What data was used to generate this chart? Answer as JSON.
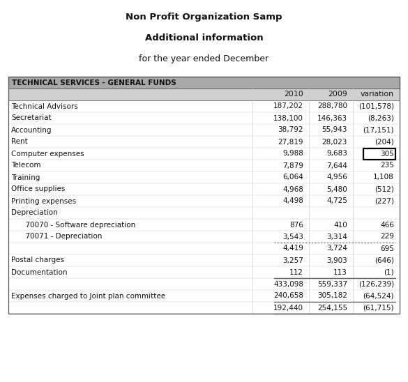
{
  "title1": "Non Profit Organization Samp",
  "title2": "Additional information",
  "title3": "for the year ended December",
  "section_header": "TECHNICAL SERVICES - GENERAL FUNDS",
  "rows": [
    {
      "label": "Technical Advisors",
      "indent": 0,
      "v2010": "187,202",
      "v2009": "288,780",
      "var": "(101,578)",
      "highlight": false,
      "dotted_below": false,
      "solid_below": false,
      "blank_above": true
    },
    {
      "label": "Secretariat",
      "indent": 0,
      "v2010": "138,100",
      "v2009": "146,363",
      "var": "(8,263)",
      "highlight": false,
      "dotted_below": false,
      "solid_below": false,
      "blank_above": false
    },
    {
      "label": "Accounting",
      "indent": 0,
      "v2010": "38,792",
      "v2009": "55,943",
      "var": "(17,151)",
      "highlight": false,
      "dotted_below": false,
      "solid_below": false,
      "blank_above": false
    },
    {
      "label": "Rent",
      "indent": 0,
      "v2010": "27,819",
      "v2009": "28,023",
      "var": "(204)",
      "highlight": false,
      "dotted_below": false,
      "solid_below": false,
      "blank_above": false
    },
    {
      "label": "Computer expenses",
      "indent": 0,
      "v2010": "9,988",
      "v2009": "9,683",
      "var": "305",
      "highlight": true,
      "dotted_below": false,
      "solid_below": false,
      "blank_above": false
    },
    {
      "label": "Telecom",
      "indent": 0,
      "v2010": "7,879",
      "v2009": "7,644",
      "var": "235",
      "highlight": false,
      "dotted_below": false,
      "solid_below": false,
      "blank_above": false
    },
    {
      "label": "Training",
      "indent": 0,
      "v2010": "6,064",
      "v2009": "4,956",
      "var": "1,108",
      "highlight": false,
      "dotted_below": false,
      "solid_below": false,
      "blank_above": false
    },
    {
      "label": "Office supplies",
      "indent": 0,
      "v2010": "4,968",
      "v2009": "5,480",
      "var": "(512)",
      "highlight": false,
      "dotted_below": false,
      "solid_below": false,
      "blank_above": false
    },
    {
      "label": "Printing expenses",
      "indent": 0,
      "v2010": "4,498",
      "v2009": "4,725",
      "var": "(227)",
      "highlight": false,
      "dotted_below": false,
      "solid_below": false,
      "blank_above": false
    },
    {
      "label": "Depreciation",
      "indent": 0,
      "v2010": "",
      "v2009": "",
      "var": "",
      "highlight": false,
      "dotted_below": false,
      "solid_below": false,
      "blank_above": false
    },
    {
      "label": "  70070 - Software depreciation",
      "indent": 1,
      "v2010": "876",
      "v2009": "410",
      "var": "466",
      "highlight": false,
      "dotted_below": false,
      "solid_below": false,
      "blank_above": false
    },
    {
      "label": "  70071 - Depreciation",
      "indent": 1,
      "v2010": "3,543",
      "v2009": "3,314",
      "var": "229",
      "highlight": false,
      "dotted_below": true,
      "solid_below": false,
      "blank_above": false
    },
    {
      "label": "",
      "indent": 0,
      "v2010": "4,419",
      "v2009": "3,724",
      "var": "695",
      "highlight": false,
      "dotted_below": false,
      "solid_below": false,
      "blank_above": false
    },
    {
      "label": "Postal charges",
      "indent": 0,
      "v2010": "3,257",
      "v2009": "3,903",
      "var": "(646)",
      "highlight": false,
      "dotted_below": false,
      "solid_below": false,
      "blank_above": false
    },
    {
      "label": "Documentation",
      "indent": 0,
      "v2010": "112",
      "v2009": "113",
      "var": "(1)",
      "highlight": false,
      "dotted_below": false,
      "solid_below": true,
      "blank_above": false
    },
    {
      "label": "",
      "indent": 0,
      "v2010": "433,098",
      "v2009": "559,337",
      "var": "(126,239)",
      "highlight": false,
      "dotted_below": false,
      "solid_below": false,
      "blank_above": true
    },
    {
      "label": "Expenses charged to Joint plan committee",
      "indent": 0,
      "v2010": "240,658",
      "v2009": "305,182",
      "var": "(64,524)",
      "highlight": false,
      "dotted_below": false,
      "solid_below": true,
      "blank_above": false
    },
    {
      "label": "",
      "indent": 0,
      "v2010": "192,440",
      "v2009": "254,155",
      "var": "(61,715)",
      "highlight": false,
      "dotted_below": false,
      "solid_below": true,
      "blank_above": true
    }
  ],
  "bg_header": "#a8a8a8",
  "bg_col_header": "#d0d0d0",
  "text_dark": "#111111",
  "highlight_box_color": "#000000",
  "outer_border_color": "#555555",
  "grid_color": "#cccccc",
  "line_color": "#666666"
}
